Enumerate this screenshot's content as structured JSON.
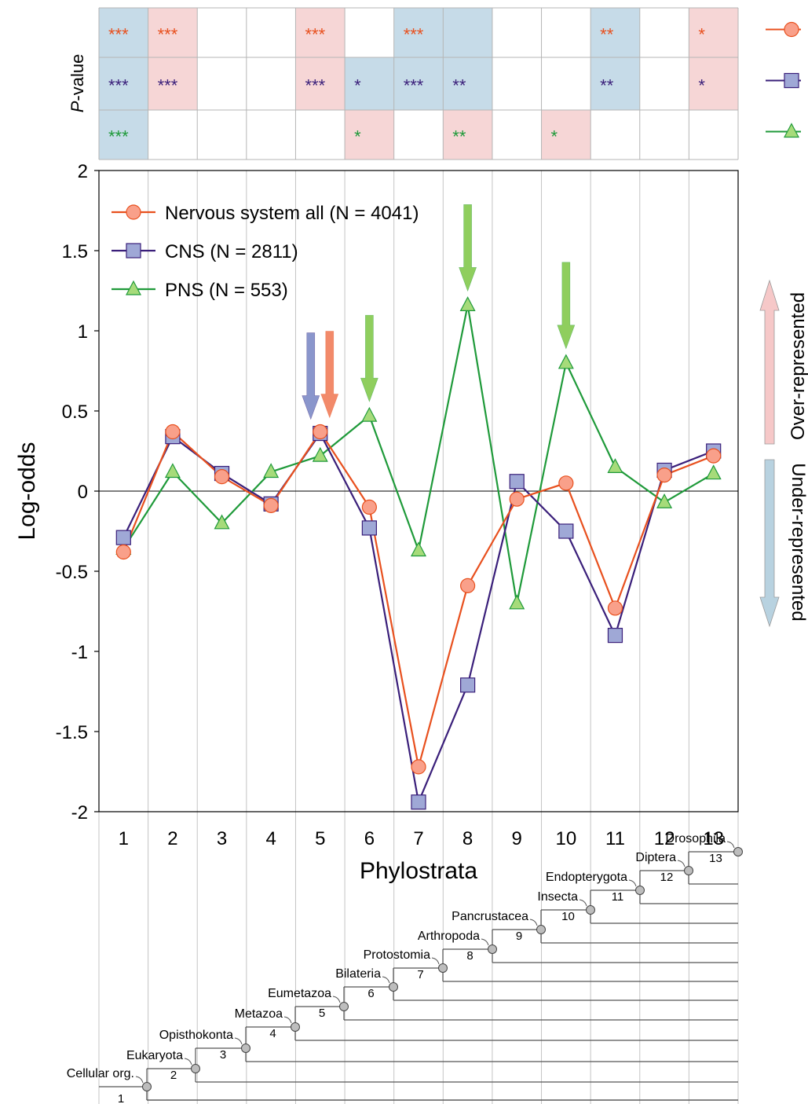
{
  "chart_data": {
    "type": "line",
    "xlabel": "Phylostrata",
    "ylabel": "Log-odds",
    "x": [
      1,
      2,
      3,
      4,
      5,
      6,
      7,
      8,
      9,
      10,
      11,
      12,
      13
    ],
    "xlim": [
      0.5,
      13.5
    ],
    "ylim": [
      -2,
      2
    ],
    "yticks": [
      "2",
      "1.5",
      "1",
      "0.5",
      "0",
      "-0.5",
      "-1",
      "-1.5",
      "-2"
    ],
    "xticks": [
      "1",
      "2",
      "3",
      "4",
      "5",
      "6",
      "7",
      "8",
      "9",
      "10",
      "11",
      "12",
      "13"
    ],
    "grid": "vertical",
    "legend_position": "top-left",
    "series": [
      {
        "name": "Nervous system all (N = 4041)",
        "color": "#e8501e",
        "fill": "#f9a08a",
        "marker": "circle",
        "values": [
          -0.38,
          0.37,
          0.09,
          -0.09,
          0.37,
          -0.1,
          -1.72,
          -0.59,
          -0.05,
          0.05,
          -0.73,
          0.1,
          0.22
        ]
      },
      {
        "name": "CNS (N = 2811)",
        "color": "#3a1f7a",
        "fill": "#9fa8d6",
        "marker": "square",
        "values": [
          -0.29,
          0.34,
          0.11,
          -0.08,
          0.36,
          -0.23,
          -1.94,
          -1.21,
          0.06,
          -0.25,
          -0.9,
          0.13,
          0.25
        ]
      },
      {
        "name": "PNS (N = 553)",
        "color": "#1f9a3a",
        "fill": "#a6db7a",
        "marker": "triangle",
        "values": [
          -0.36,
          0.12,
          -0.2,
          0.12,
          0.22,
          0.47,
          -0.37,
          1.16,
          -0.7,
          0.8,
          0.15,
          -0.07,
          0.11
        ]
      }
    ],
    "significance": {
      "label_italic": "P",
      "label_rest": "-value",
      "rows": [
        [
          "***",
          "***",
          "",
          "",
          "***",
          "",
          "***",
          "",
          "",
          "",
          "**",
          "",
          "*"
        ],
        [
          "***",
          "***",
          "",
          "",
          "***",
          "*",
          "***",
          "**",
          "",
          "",
          "**",
          "",
          "*"
        ],
        [
          "***",
          "",
          "",
          "",
          "",
          "*",
          "",
          "**",
          "",
          "*",
          "",
          "",
          ""
        ]
      ],
      "shading": [
        [
          "blue",
          "pink",
          "",
          "",
          "pink",
          "",
          "blue",
          "blue",
          "",
          "",
          "blue",
          "",
          "pink"
        ],
        [
          "blue",
          "pink",
          "",
          "",
          "pink",
          "blue",
          "blue",
          "blue",
          "",
          "",
          "blue",
          "",
          "pink"
        ],
        [
          "blue",
          "",
          "",
          "",
          "",
          "pink",
          "",
          "pink",
          "",
          "pink",
          "",
          "",
          ""
        ]
      ]
    },
    "arrows": [
      {
        "x": 5,
        "series": "CNS (N = 2811)",
        "color": "#8a96cc"
      },
      {
        "x": 5,
        "series": "Nervous system all (N = 4041)",
        "color": "#f28a6a"
      },
      {
        "x": 6,
        "series": "PNS (N = 553)",
        "color": "#8fce5e"
      },
      {
        "x": 8,
        "series": "PNS (N = 553)",
        "color": "#8fce5e"
      },
      {
        "x": 10,
        "series": "PNS (N = 553)",
        "color": "#8fce5e"
      }
    ],
    "side_labels": {
      "over": "Over-represented",
      "under": "Under-represented"
    },
    "colors": {
      "pink": "#f6d6d6",
      "blue": "#c6dbe8",
      "over_arrow": "#f6c8c8",
      "under_arrow": "#b8d2e0"
    }
  },
  "phylogeny": {
    "clades": [
      "Cellular org.",
      "Eukaryota",
      "Opisthokonta",
      "Metazoa",
      "Eumetazoa",
      "Bilateria",
      "Protostomia",
      "Arthropoda",
      "Pancrustacea",
      "Insecta",
      "Endopterygota",
      "Diptera",
      "Drosophila"
    ],
    "strata": [
      "1",
      "2",
      "3",
      "4",
      "5",
      "6",
      "7",
      "8",
      "9",
      "10",
      "11",
      "12",
      "13"
    ]
  }
}
